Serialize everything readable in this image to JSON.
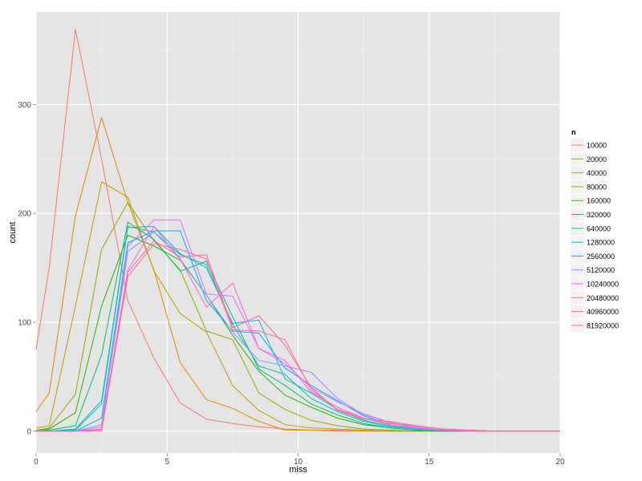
{
  "chart_data": {
    "type": "line",
    "xlabel": "miss",
    "ylabel": "count",
    "xlim": [
      0,
      20
    ],
    "ylim": [
      -20,
      385
    ],
    "x_ticks": [
      0,
      5,
      10,
      15,
      20
    ],
    "y_ticks": [
      0,
      100,
      200,
      300
    ],
    "grid": true,
    "legend": {
      "title": "n",
      "placement": "right"
    },
    "x": [
      0,
      0.5,
      1.5,
      2.5,
      3.5,
      4.5,
      5.5,
      6.5,
      7.5,
      8.5,
      9.5,
      10.5,
      11.5,
      12.5,
      13.5,
      14.5,
      15.5,
      16.5,
      17.5,
      18.5,
      19.5,
      20
    ],
    "series": [
      {
        "name": "10000",
        "color": "#F8766D",
        "values": [
          75,
          150,
          369,
          250,
          120,
          67,
          26,
          11,
          7,
          4,
          2,
          1,
          1,
          0,
          0,
          0,
          0,
          0,
          0,
          0,
          0,
          0
        ]
      },
      {
        "name": "20000",
        "color": "#E18A00",
        "values": [
          18,
          35,
          198,
          288,
          210,
          148,
          63,
          29,
          21,
          9,
          1,
          1,
          0,
          0,
          0,
          0,
          0,
          0,
          0,
          0,
          0,
          0
        ]
      },
      {
        "name": "40000",
        "color": "#BE9C00",
        "values": [
          3,
          5,
          115,
          229,
          215,
          147,
          108,
          91,
          42,
          19,
          6,
          3,
          2,
          1,
          0,
          0,
          0,
          0,
          0,
          0,
          0,
          0
        ]
      },
      {
        "name": "80000",
        "color": "#8CAB00",
        "values": [
          1,
          3,
          34,
          167,
          210,
          175,
          148,
          92,
          84,
          35,
          20,
          10,
          5,
          2,
          1,
          0,
          0,
          0,
          0,
          0,
          0,
          0
        ]
      },
      {
        "name": "160000",
        "color": "#24B700",
        "values": [
          0,
          2,
          17,
          115,
          180,
          170,
          157,
          125,
          88,
          55,
          33,
          22,
          12,
          6,
          3,
          1,
          0,
          0,
          0,
          0,
          0,
          0
        ]
      },
      {
        "name": "320000",
        "color": "#00BE70",
        "values": [
          0,
          1,
          5,
          70,
          192,
          176,
          147,
          156,
          105,
          57,
          42,
          25,
          15,
          7,
          3,
          1,
          0,
          0,
          0,
          0,
          0,
          0
        ]
      },
      {
        "name": "640000",
        "color": "#00C1AB",
        "values": [
          0,
          0,
          2,
          28,
          188,
          183,
          162,
          153,
          98,
          60,
          52,
          30,
          18,
          9,
          4,
          2,
          1,
          0,
          0,
          0,
          0,
          0
        ]
      },
      {
        "name": "1280000",
        "color": "#00BBDA",
        "values": [
          0,
          0,
          1,
          25,
          187,
          188,
          163,
          150,
          99,
          102,
          48,
          35,
          20,
          10,
          5,
          2,
          1,
          0,
          0,
          0,
          0,
          0
        ]
      },
      {
        "name": "2560000",
        "color": "#00ACFC",
        "values": [
          0,
          0,
          0,
          12,
          173,
          184,
          184,
          120,
          92,
          90,
          58,
          42,
          28,
          14,
          6,
          3,
          1,
          0,
          0,
          0,
          0,
          0
        ]
      },
      {
        "name": "5120000",
        "color": "#8B93FF",
        "values": [
          0,
          0,
          0,
          6,
          165,
          183,
          158,
          125,
          91,
          65,
          60,
          54,
          30,
          15,
          8,
          3,
          1,
          0,
          0,
          0,
          0,
          0
        ]
      },
      {
        "name": "10240000",
        "color": "#D575FE",
        "values": [
          0,
          0,
          0,
          4,
          170,
          194,
          194,
          126,
          124,
          76,
          62,
          40,
          27,
          16,
          8,
          4,
          2,
          0,
          0,
          0,
          0,
          0
        ]
      },
      {
        "name": "20480000",
        "color": "#F962DD",
        "values": [
          0,
          0,
          0,
          2,
          148,
          188,
          158,
          114,
          136,
          76,
          65,
          36,
          22,
          12,
          6,
          3,
          1,
          0,
          0,
          0,
          0,
          0
        ]
      },
      {
        "name": "40960000",
        "color": "#FF65AC",
        "values": [
          0,
          0,
          0,
          1,
          146,
          175,
          160,
          162,
          95,
          106,
          79,
          40,
          19,
          11,
          9,
          5,
          2,
          1,
          0,
          0,
          0,
          0
        ]
      },
      {
        "name": "81920000",
        "color": "#FF6C91",
        "values": [
          0,
          0,
          0,
          0,
          142,
          172,
          167,
          158,
          93,
          92,
          84,
          38,
          20,
          12,
          7,
          5,
          2,
          1,
          0,
          0,
          0,
          0
        ]
      }
    ]
  }
}
